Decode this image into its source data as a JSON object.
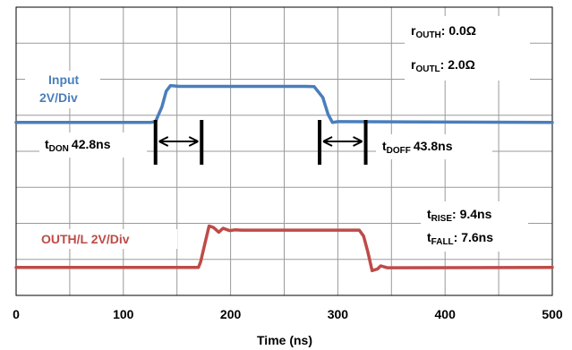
{
  "chart_data": {
    "type": "line",
    "title": "",
    "xlabel": "Time (ns)",
    "ylabel": "",
    "xlim": [
      0,
      500
    ],
    "xticks": [
      0,
      100,
      200,
      300,
      400,
      500
    ],
    "grid": true,
    "grid_divisions": {
      "x": 10,
      "y": 8
    },
    "series": [
      {
        "name": "Input 2V/Div",
        "color": "#4a7ebb",
        "points": [
          [
            0,
            0.0
          ],
          [
            125,
            0.0
          ],
          [
            130,
            0.05
          ],
          [
            136,
            1.0
          ],
          [
            140,
            2.0
          ],
          [
            144,
            2.35
          ],
          [
            152,
            2.3
          ],
          [
            270,
            2.3
          ],
          [
            278,
            2.28
          ],
          [
            286,
            1.6
          ],
          [
            291,
            0.5
          ],
          [
            295,
            0.0
          ],
          [
            300,
            0.05
          ],
          [
            500,
            0.0
          ]
        ]
      },
      {
        "name": "OUTH/L 2V/Div",
        "color": "#be4b48",
        "points": [
          [
            0,
            0.0
          ],
          [
            170,
            0.0
          ],
          [
            172,
            0.35
          ],
          [
            176,
            1.5
          ],
          [
            180,
            2.65
          ],
          [
            184,
            2.55
          ],
          [
            189,
            2.25
          ],
          [
            193,
            2.5
          ],
          [
            199,
            2.35
          ],
          [
            204,
            2.4
          ],
          [
            210,
            2.38
          ],
          [
            320,
            2.38
          ],
          [
            324,
            2.0
          ],
          [
            328,
            1.0
          ],
          [
            332,
            -0.2
          ],
          [
            337,
            -0.1
          ],
          [
            340,
            0.1
          ],
          [
            346,
            -0.02
          ],
          [
            500,
            0.0
          ]
        ]
      }
    ],
    "annotations": {
      "t_don": {
        "base": "t",
        "sub": "DON",
        "value": "42.8ns"
      },
      "t_doff": {
        "base": "t",
        "sub": "DOFF",
        "value": "43.8ns"
      },
      "r_outh": {
        "base": "r",
        "sub": "OUTH",
        "value": ": 0.0Ω"
      },
      "r_outl": {
        "base": "r",
        "sub": "OUTL",
        "value": ": 2.0Ω"
      },
      "t_rise": {
        "base": "t",
        "sub": "RISE",
        "value": ": 9.4ns"
      },
      "t_fall": {
        "base": "t",
        "sub": "FALL",
        "value": ": 7.6ns"
      }
    },
    "trace_labels": {
      "input_line1": "Input",
      "input_line2": "2V/Div",
      "output": "OUTH/L 2V/Div"
    }
  }
}
